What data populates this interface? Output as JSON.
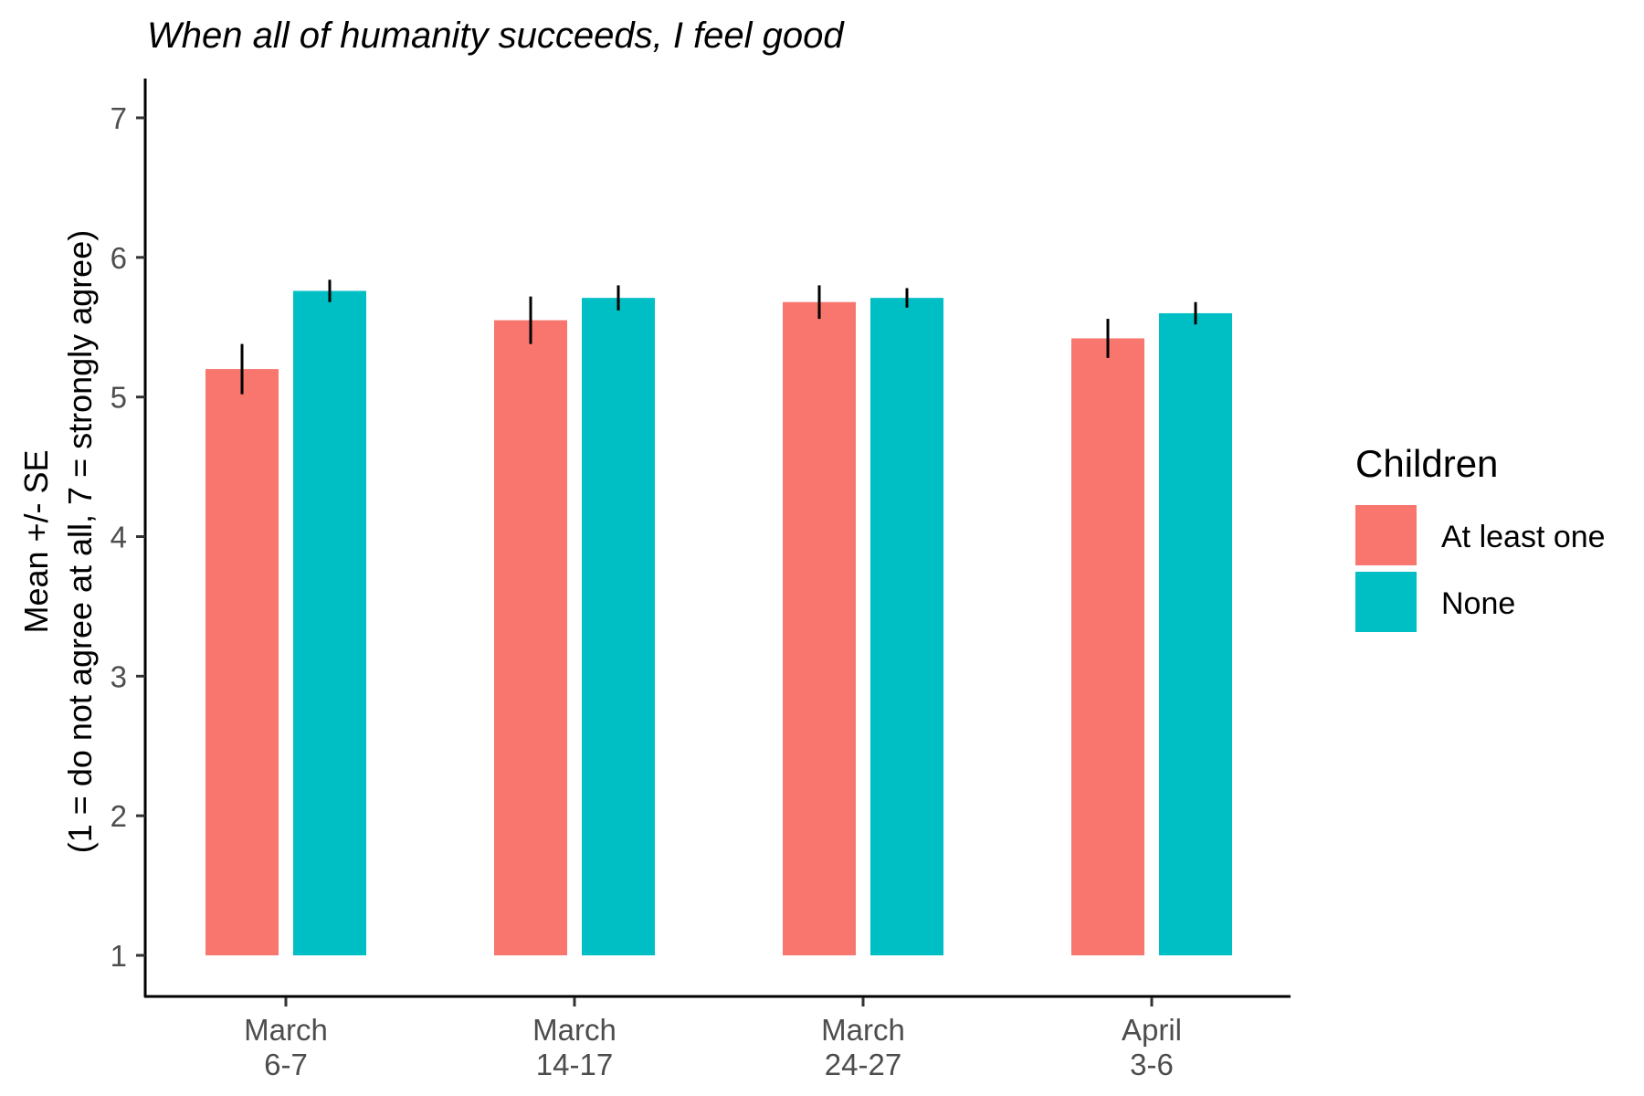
{
  "chart_data": {
    "type": "bar",
    "title": "When all of humanity succeeds, I feel good",
    "xlabel": "",
    "ylabel": [
      "Mean +/- SE",
      "(1 = do not agree at all, 7 = strongly agree)"
    ],
    "ylim": [
      1,
      7
    ],
    "yticks": [
      1,
      2,
      3,
      4,
      5,
      6,
      7
    ],
    "categories": [
      [
        "March",
        "6-7"
      ],
      [
        "March",
        "14-17"
      ],
      [
        "March",
        "24-27"
      ],
      [
        "April",
        "3-6"
      ]
    ],
    "series": [
      {
        "name": "At least one",
        "color": "#F8766D",
        "values": [
          5.2,
          5.55,
          5.68,
          5.42
        ],
        "se": [
          0.18,
          0.17,
          0.12,
          0.14
        ]
      },
      {
        "name": "None",
        "color": "#00BFC4",
        "values": [
          5.76,
          5.71,
          5.71,
          5.6
        ],
        "se": [
          0.08,
          0.09,
          0.07,
          0.08
        ]
      }
    ],
    "legend": {
      "title": "Children",
      "position": "right"
    },
    "grid": false
  }
}
